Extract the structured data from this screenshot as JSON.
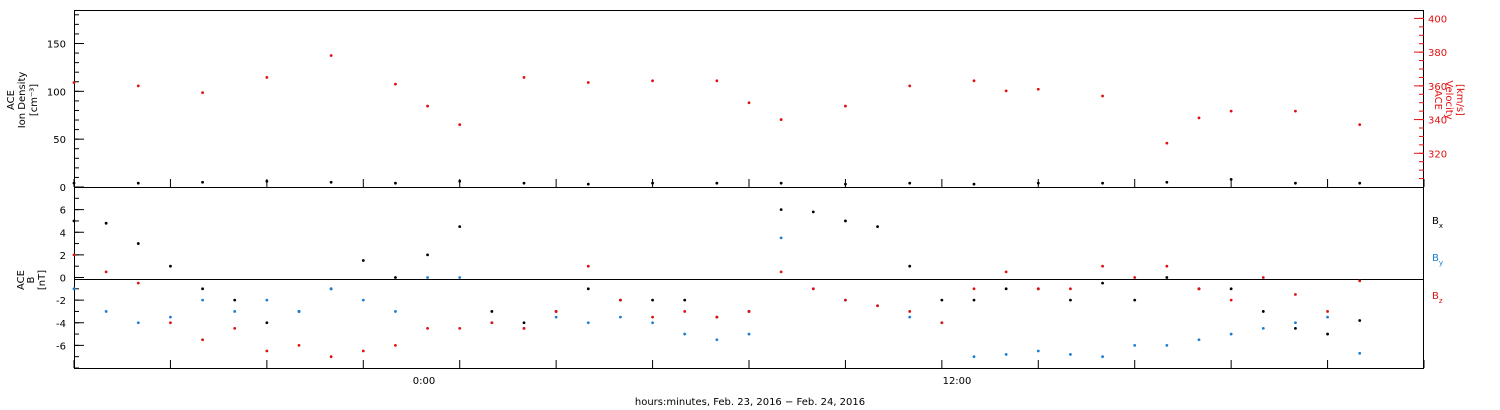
{
  "chart_data": [
    {
      "type": "scatter",
      "title": "",
      "ylabel_lines": [
        "ACE",
        "Ion Density",
        "[cm⁻³]"
      ],
      "ylim": [
        0,
        185
      ],
      "yticks": [
        0,
        50,
        100,
        150
      ],
      "ylabel_right_lines": [
        "ACE",
        "Velocity",
        "[km/s]"
      ],
      "ylim_right": [
        300,
        405
      ],
      "yticks_right": [
        320,
        340,
        360,
        380,
        400
      ],
      "xlim": [
        0,
        42
      ],
      "series": [
        {
          "name": "Ion Density",
          "axis": "left",
          "color": "#000000",
          "x": [
            0,
            2,
            4,
            6,
            8,
            10,
            12,
            14,
            16,
            18,
            20,
            22,
            24,
            26,
            28,
            30,
            32,
            34,
            36,
            38,
            40
          ],
          "y": [
            4,
            4,
            5,
            6,
            5,
            4,
            6,
            4,
            3,
            4,
            4,
            4,
            3,
            4,
            3,
            4,
            4,
            5,
            8,
            4,
            4
          ]
        },
        {
          "name": "Velocity",
          "axis": "right",
          "color": "#e01010",
          "x": [
            0,
            2,
            4,
            6,
            8,
            10,
            11,
            12,
            14,
            16,
            18,
            20,
            21,
            22,
            24,
            26,
            28,
            29,
            30,
            32,
            34,
            35,
            36,
            38,
            40
          ],
          "y": [
            362,
            360,
            356,
            365,
            378,
            361,
            348,
            337,
            365,
            362,
            363,
            363,
            350,
            340,
            348,
            360,
            363,
            357,
            358,
            354,
            326,
            341,
            345,
            345,
            337
          ]
        }
      ]
    },
    {
      "type": "scatter",
      "title": "",
      "ylabel_lines": [
        "ACE",
        "B",
        "[nT]"
      ],
      "ylim": [
        -8,
        8
      ],
      "yticks": [
        -6,
        -4,
        -2,
        0,
        2,
        4,
        6
      ],
      "xlabel": "hours:minutes, Feb. 23, 2016 − Feb. 24, 2016",
      "xticks": [
        "0:00",
        "12:00"
      ],
      "xlim": [
        0,
        42
      ],
      "series": [
        {
          "name": "B_x",
          "color": "#000000",
          "x": [
            0,
            1,
            2,
            3,
            4,
            5,
            6,
            7,
            8,
            9,
            10,
            11,
            12,
            13,
            14,
            15,
            16,
            17,
            18,
            19,
            20,
            21,
            22,
            23,
            24,
            25,
            26,
            27,
            28,
            29,
            30,
            31,
            32,
            33,
            34,
            35,
            36,
            37,
            38,
            39,
            40
          ],
          "y": [
            5,
            4.8,
            3,
            1,
            -1,
            -2,
            -4,
            -3,
            -1,
            1.5,
            0,
            2,
            4.5,
            -3,
            -4,
            -3,
            -1,
            -2,
            -2,
            -2,
            -3.5,
            -3,
            6,
            5.8,
            5,
            4.5,
            1,
            -2,
            -2,
            -1,
            -1,
            -2,
            -0.5,
            -2,
            0,
            -1,
            -1,
            -3,
            -4.5,
            -5,
            -3.8
          ]
        },
        {
          "name": "B_y",
          "color": "#1a7fd4",
          "x": [
            0,
            1,
            2,
            3,
            4,
            5,
            6,
            7,
            8,
            9,
            10,
            11,
            12,
            13,
            14,
            15,
            16,
            17,
            18,
            19,
            20,
            21,
            22,
            23,
            24,
            25,
            26,
            27,
            28,
            29,
            30,
            31,
            32,
            33,
            34,
            35,
            36,
            37,
            38,
            39,
            40
          ],
          "y": [
            -1,
            -3,
            -4,
            -3.5,
            -2,
            -3,
            -2,
            -3,
            -1,
            -2,
            -3,
            0,
            0,
            -4,
            -4.5,
            -3.5,
            -4,
            -3.5,
            -4,
            -5,
            -5.5,
            -5,
            3.5,
            -1,
            -2,
            -2.5,
            -3.5,
            -4,
            -7,
            -6.8,
            -6.5,
            -6.8,
            -7,
            -6,
            -6,
            -5.5,
            -5,
            -4.5,
            -4,
            -3.5,
            -6.7
          ]
        },
        {
          "name": "B_z",
          "color": "#e01010",
          "x": [
            0,
            1,
            2,
            3,
            4,
            5,
            6,
            7,
            8,
            9,
            10,
            11,
            12,
            13,
            14,
            15,
            16,
            17,
            18,
            19,
            20,
            21,
            22,
            23,
            24,
            25,
            26,
            27,
            28,
            29,
            30,
            31,
            32,
            33,
            34,
            35,
            36,
            37,
            38,
            39,
            40
          ],
          "y": [
            2,
            0.5,
            -0.5,
            -4,
            -5.5,
            -4.5,
            -6.5,
            -6,
            -7,
            -6.5,
            -6,
            -4.5,
            -4.5,
            -4,
            -4.5,
            -3,
            1,
            -2,
            -3.5,
            -3,
            -3.5,
            -3,
            0.5,
            -1,
            -2,
            -2.5,
            -3,
            -4,
            -1,
            0.5,
            -1,
            -1,
            1,
            0,
            1,
            -1,
            -2,
            0,
            -1.5,
            -3,
            -0.3
          ]
        }
      ],
      "legend": {
        "placement": "right",
        "entries": [
          "B",
          "B",
          "B"
        ],
        "subscripts": [
          "x",
          "y",
          "z"
        ]
      }
    }
  ]
}
